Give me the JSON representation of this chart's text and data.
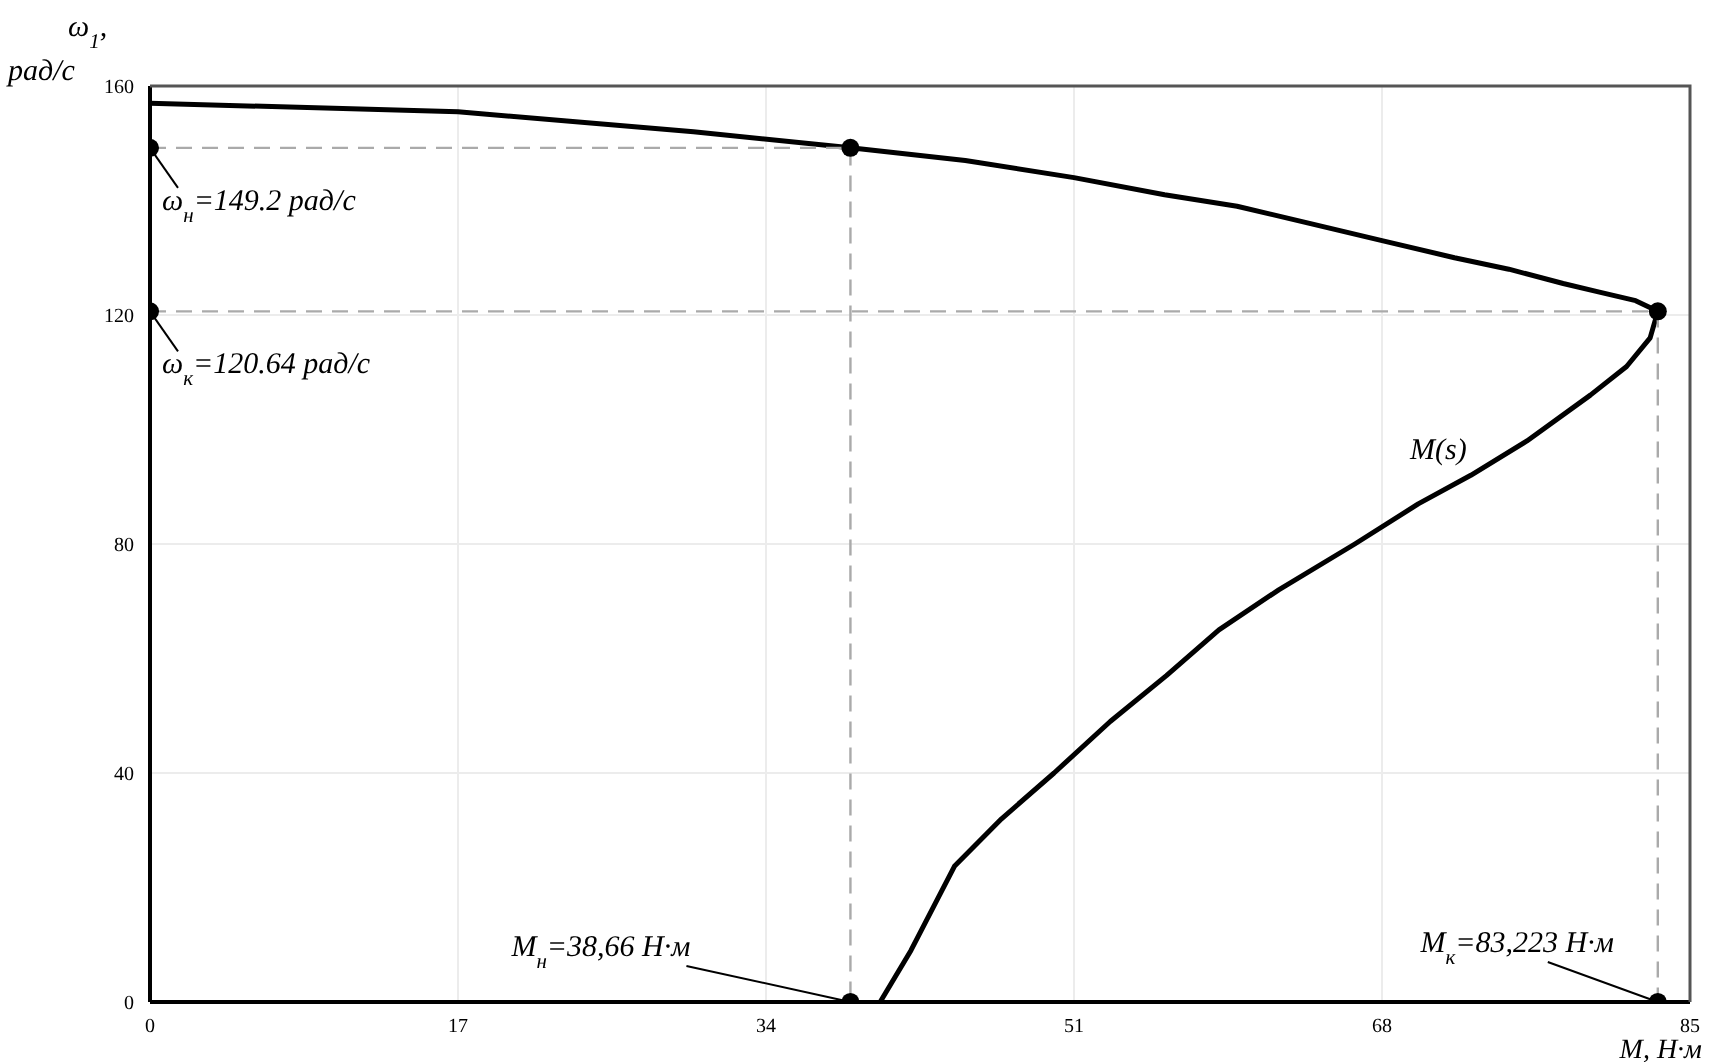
{
  "chart_data": {
    "type": "line",
    "xlabel": "M, Н·м",
    "ylabel": "ω$_{1}$, рад/с",
    "xlim": [
      0,
      85
    ],
    "xticks": [
      0,
      17,
      34,
      51,
      68,
      85
    ],
    "ylim": [
      0,
      160
    ],
    "yticks": [
      0,
      40,
      80,
      120,
      160
    ],
    "grid": true,
    "marker": "none",
    "series": [
      {
        "name": "M(s)",
        "color": "#000000",
        "x": [
          0,
          17,
          30,
          38.66,
          45,
          51,
          56,
          60,
          64,
          68,
          72,
          75,
          78,
          80,
          82,
          83.223,
          82.8,
          81.5,
          79.5,
          76,
          72.9,
          70,
          66.5,
          62.3,
          59,
          56.1,
          53,
          49.9,
          47,
          44.4,
          42,
          40.3
        ],
        "values": [
          157,
          155.5,
          152,
          149.2,
          147,
          144,
          141,
          139,
          136,
          133,
          130,
          128,
          125.5,
          124,
          122.5,
          120.64,
          116,
          111,
          106,
          98,
          92,
          87,
          80,
          72,
          65,
          57,
          49,
          40,
          32,
          23.7,
          9,
          0
        ]
      },
      {
        "type": "line",
        "line_style": "dashed",
        "color": "#aaaaaa",
        "x": [
          0,
          38.66,
          38.66
        ],
        "values": [
          149.2,
          149.2,
          0
        ]
      },
      {
        "type": "line",
        "line_style": "dashed",
        "color": "#aaaaaa",
        "x": [
          0,
          83.223,
          83.223
        ],
        "values": [
          120.64,
          120.64,
          0
        ]
      },
      {
        "type": "scatter",
        "marker": "circle",
        "color": "#000000",
        "x": [
          0,
          38.66,
          38.66,
          0,
          83.223,
          83.223
        ],
        "values": [
          149.2,
          149.2,
          0,
          120.64,
          120.64,
          0
        ]
      }
    ],
    "annotations": [
      {
        "text": "ω$_{н}$=149.2 рад/с",
        "x": 0,
        "y": 149.2
      },
      {
        "text": "ω$_{к}$=120.64 рад/с",
        "x": 0,
        "y": 120.64
      },
      {
        "text": "M$_{н}$=38,66 Н·м",
        "x": 38.66,
        "y": 0
      },
      {
        "text": "M$_{к}$=83,223 Н·м",
        "x": 83.223,
        "y": 0
      }
    ]
  }
}
